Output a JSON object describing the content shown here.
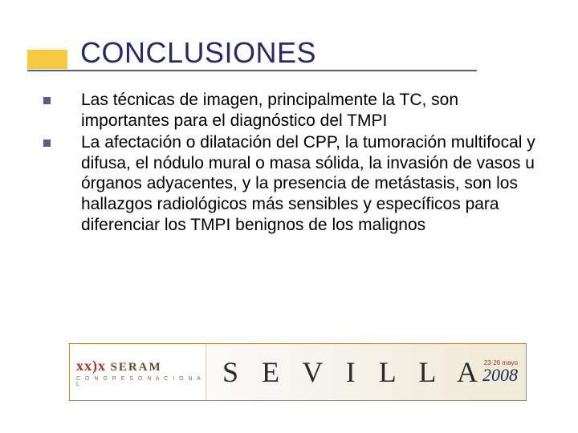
{
  "slide": {
    "title": "CONCLUSIONES",
    "title_color": "#2a2a6a",
    "accent_color": "#f7c93f",
    "underline_color": "#5b5b87",
    "bullets": [
      {
        "text": "Las técnicas de imagen, principalmente la TC, son importantes para el diagnóstico del TMPI"
      },
      {
        "text": "La afectación o dilatación del CPP, la tumoración multifocal y difusa, el nódulo mural o masa sólida, la invasión de vasos u órganos adyacentes, y la presencia de metástasis, son los hallazgos radiológicos más sensibles y específicos para diferenciar  los TMPI benignos de los malignos"
      }
    ],
    "bullet_marker_color": "#5b5b87",
    "body_font_size": 21,
    "body_color": "#000000"
  },
  "footer": {
    "congress_num": "xx)x",
    "org": "SERAM",
    "subtitle": "C O N G R E S O    N A C I O N A L",
    "city": "S E V I L L A",
    "dates": "23·26 mayo",
    "year": "2008",
    "border_color": "#b78a4a",
    "city_color": "#2a2a2a",
    "year_color": "#1a2a4a"
  }
}
